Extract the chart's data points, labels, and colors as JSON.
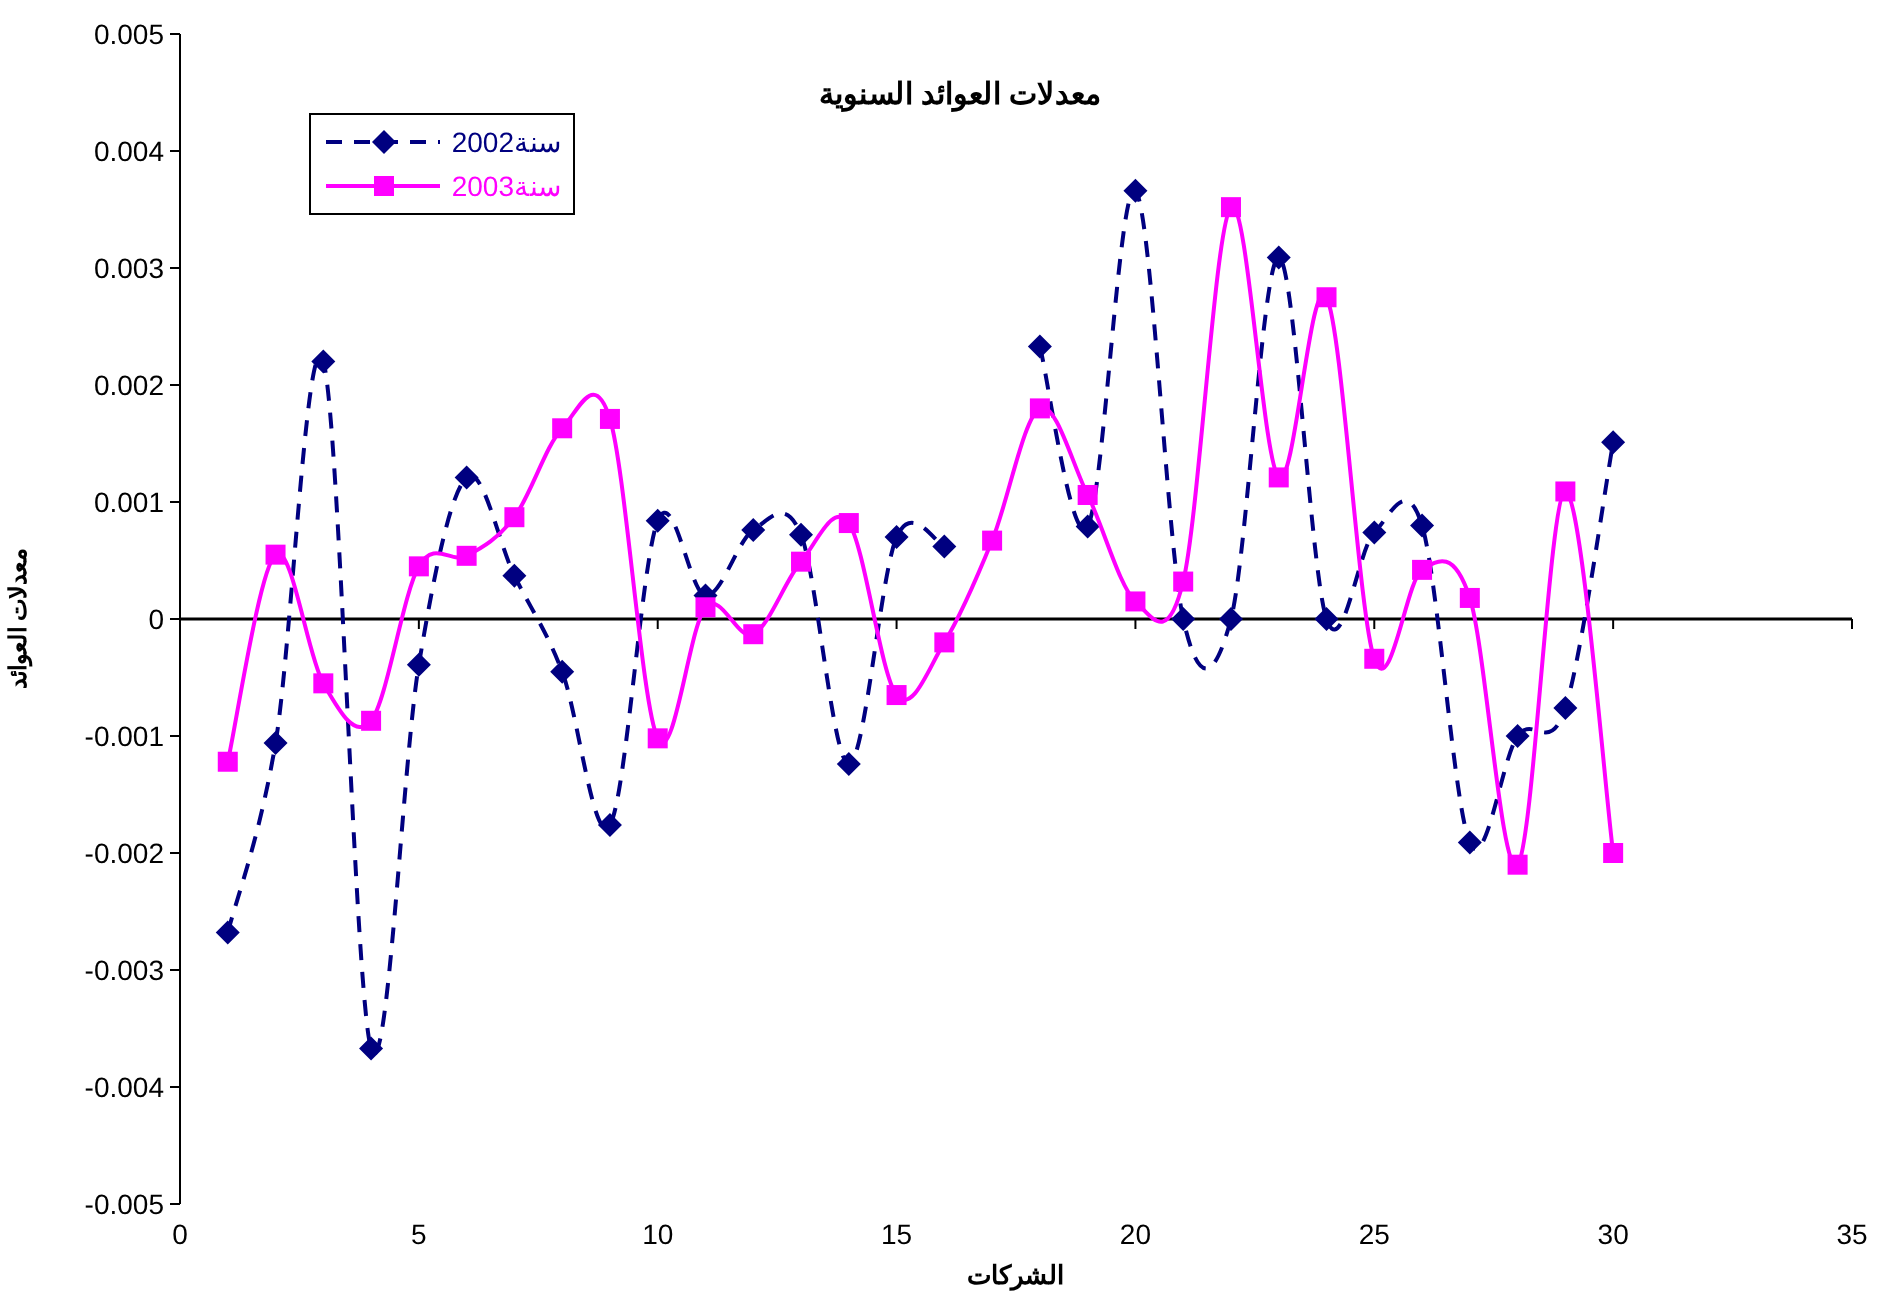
{
  "chart_data": {
    "type": "line",
    "title": "معدلات العوائد السنوية",
    "xlabel": "الشركات",
    "ylabel": "معدلات العوائد",
    "x": [
      1,
      2,
      3,
      4,
      5,
      6,
      7,
      8,
      9,
      10,
      11,
      12,
      13,
      14,
      15,
      16,
      17,
      18,
      19,
      20,
      21,
      22,
      23,
      24,
      25,
      26,
      27,
      28,
      29,
      30
    ],
    "xlim": [
      0,
      35
    ],
    "xticks": [
      0,
      5,
      10,
      15,
      20,
      25,
      30,
      35
    ],
    "ylim": [
      -0.005,
      0.005
    ],
    "yticks": [
      -0.005,
      -0.004,
      -0.003,
      -0.002,
      -0.001,
      0,
      0.001,
      0.002,
      0.003,
      0.004,
      0.005
    ],
    "legend": "top left",
    "series": [
      {
        "name": "سنة2002",
        "color": "#000080",
        "marker": "diamond",
        "line_style": "dashed",
        "values": [
          -0.00268,
          -0.00106,
          0.0022,
          -0.00367,
          -0.00039,
          0.00121,
          0.00037,
          -0.00045,
          -0.00176,
          0.00084,
          0.0002,
          0.00076,
          0.00072,
          -0.00124,
          0.0007,
          0.00062,
          null,
          0.00233,
          0.00079,
          0.00366,
          0,
          0,
          0.00309,
          0,
          0.00074,
          0.0008,
          -0.00191,
          -0.001,
          -0.00076,
          0.00151
        ]
      },
      {
        "name": "سنة2003",
        "color": "#ff00ff",
        "marker": "square",
        "line_style": "solid",
        "values": [
          -0.00122,
          0.00055,
          -0.00055,
          -0.00087,
          0.00045,
          0.00054,
          0.00087,
          0.00163,
          0.00171,
          -0.00102,
          0.0001,
          -0.00013,
          0.00049,
          0.00082,
          -0.00065,
          -0.0002,
          0.00067,
          0.0018,
          0.00106,
          0.00015,
          0.00032,
          0.00352,
          0.00121,
          0.00275,
          -0.00034,
          0.00042,
          0.00018,
          -0.0021,
          0.00109,
          -0.002
        ]
      }
    ]
  }
}
